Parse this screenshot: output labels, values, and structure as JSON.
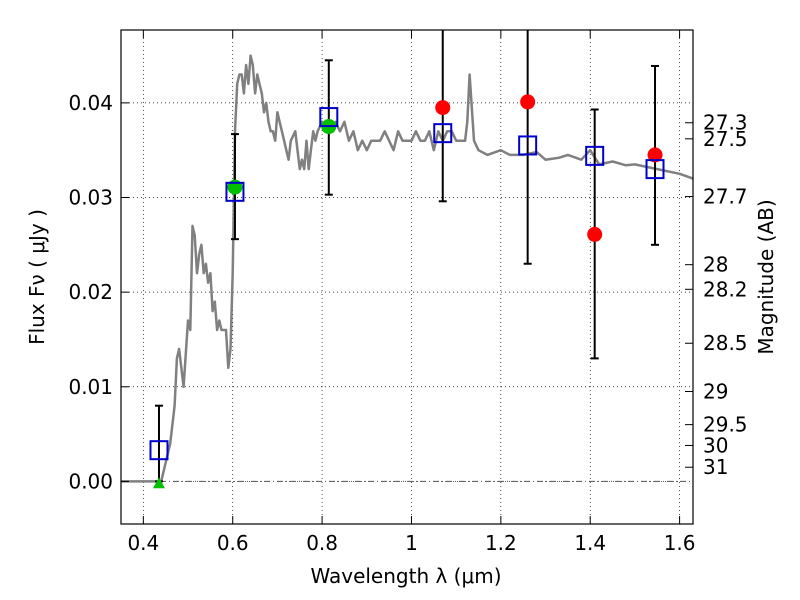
{
  "chart_data": {
    "type": "scatter",
    "xlabel": "Wavelength  λ (μm)",
    "ylabel": "Flux  Fν  ( μJy )",
    "y2label": "Magnitude (AB)",
    "xlim": [
      0.35,
      1.63
    ],
    "ylim": [
      -0.0045,
      0.0477
    ],
    "x_ticks": [
      0.4,
      0.6,
      0.8,
      1.0,
      1.2,
      1.4,
      1.6
    ],
    "x_tick_labels": [
      "0.4",
      "0.6",
      "0.8",
      "1",
      "1.2",
      "1.4",
      "1.6"
    ],
    "y_ticks": [
      0.0,
      0.01,
      0.02,
      0.03,
      0.04
    ],
    "y_tick_labels": [
      "0.00",
      "0.01",
      "0.02",
      "0.03",
      "0.04"
    ],
    "y2_ticks": [
      {
        "flux": 0.0379,
        "label": "27.3"
      },
      {
        "flux": 0.0362,
        "label": "27.5"
      },
      {
        "flux": 0.0301,
        "label": "27.7"
      },
      {
        "flux": 0.0229,
        "label": "28"
      },
      {
        "flux": 0.0203,
        "label": "28.2"
      },
      {
        "flux": 0.0146,
        "label": "28.5"
      },
      {
        "flux": 0.0095,
        "label": "29"
      },
      {
        "flux": 0.006,
        "label": "29.5"
      },
      {
        "flux": 0.0038,
        "label": "30"
      },
      {
        "flux": 0.0015,
        "label": "31"
      }
    ],
    "grid": true,
    "colors": {
      "model": "#808080",
      "green": "#00c000",
      "red": "#ff0000",
      "blue": "#0000cc",
      "errorbar": "#000000",
      "zero_line": "#555555"
    },
    "series": [
      {
        "kind": "model_spectrum",
        "x": [
          0.35,
          0.42,
          0.44,
          0.45,
          0.46,
          0.47,
          0.475,
          0.48,
          0.49,
          0.5,
          0.505,
          0.51,
          0.515,
          0.52,
          0.525,
          0.53,
          0.535,
          0.54,
          0.545,
          0.55,
          0.555,
          0.56,
          0.565,
          0.57,
          0.575,
          0.58,
          0.585,
          0.59,
          0.595,
          0.6,
          0.605,
          0.61,
          0.615,
          0.62,
          0.625,
          0.63,
          0.635,
          0.64,
          0.645,
          0.65,
          0.655,
          0.66,
          0.665,
          0.67,
          0.675,
          0.68,
          0.685,
          0.69,
          0.695,
          0.7,
          0.705,
          0.71,
          0.715,
          0.72,
          0.725,
          0.73,
          0.74,
          0.745,
          0.75,
          0.755,
          0.76,
          0.765,
          0.77,
          0.775,
          0.78,
          0.785,
          0.79,
          0.8,
          0.81,
          0.82,
          0.83,
          0.84,
          0.85,
          0.86,
          0.87,
          0.88,
          0.89,
          0.9,
          0.91,
          0.92,
          0.93,
          0.94,
          0.95,
          0.96,
          0.97,
          0.98,
          0.99,
          1.0,
          1.01,
          1.02,
          1.03,
          1.04,
          1.05,
          1.06,
          1.07,
          1.08,
          1.09,
          1.1,
          1.11,
          1.12,
          1.125,
          1.13,
          1.14,
          1.15,
          1.17,
          1.2,
          1.22,
          1.25,
          1.28,
          1.3,
          1.33,
          1.35,
          1.38,
          1.4,
          1.42,
          1.45,
          1.48,
          1.5,
          1.55,
          1.6,
          1.63
        ],
        "y": [
          0.0,
          0.0,
          0.0,
          0.002,
          0.004,
          0.008,
          0.013,
          0.014,
          0.01,
          0.017,
          0.016,
          0.027,
          0.026,
          0.022,
          0.024,
          0.025,
          0.022,
          0.023,
          0.021,
          0.022,
          0.018,
          0.019,
          0.016,
          0.017,
          0.016,
          0.016,
          0.016,
          0.012,
          0.014,
          0.022,
          0.037,
          0.042,
          0.043,
          0.043,
          0.041,
          0.044,
          0.042,
          0.045,
          0.044,
          0.041,
          0.043,
          0.042,
          0.041,
          0.039,
          0.04,
          0.038,
          0.037,
          0.037,
          0.036,
          0.039,
          0.038,
          0.037,
          0.036,
          0.035,
          0.034,
          0.036,
          0.037,
          0.035,
          0.033,
          0.034,
          0.033,
          0.036,
          0.033,
          0.035,
          0.037,
          0.036,
          0.037,
          0.038,
          0.037,
          0.037,
          0.038,
          0.037,
          0.038,
          0.036,
          0.037,
          0.035,
          0.036,
          0.035,
          0.036,
          0.036,
          0.036,
          0.037,
          0.036,
          0.035,
          0.037,
          0.036,
          0.036,
          0.036,
          0.037,
          0.036,
          0.036,
          0.037,
          0.035,
          0.037,
          0.036,
          0.037,
          0.037,
          0.036,
          0.036,
          0.036,
          0.038,
          0.043,
          0.036,
          0.035,
          0.0345,
          0.035,
          0.0345,
          0.0345,
          0.0348,
          0.034,
          0.0342,
          0.0345,
          0.034,
          0.035,
          0.0335,
          0.0338,
          0.0334,
          0.0335,
          0.033,
          0.0325,
          0.032
        ]
      },
      {
        "kind": "blue_squares",
        "x": [
          0.435,
          0.605,
          0.815,
          1.07,
          1.26,
          1.41,
          1.545
        ],
        "y": [
          0.0033,
          0.0306,
          0.0385,
          0.0368,
          0.0355,
          0.0344,
          0.033
        ]
      },
      {
        "kind": "red_circles",
        "x": [
          1.07,
          1.26,
          1.41,
          1.545
        ],
        "y": [
          0.0395,
          0.0401,
          0.0261,
          0.0345
        ]
      },
      {
        "kind": "green_circles",
        "x": [
          0.605,
          0.815
        ],
        "y": [
          0.0311,
          0.0375
        ]
      },
      {
        "kind": "green_triangle",
        "x": [
          0.435
        ],
        "y": [
          -0.0002
        ]
      },
      {
        "kind": "error_bars",
        "x": [
          0.435,
          0.605,
          0.815,
          1.07,
          1.26,
          1.41,
          1.545
        ],
        "low": [
          0.0,
          0.0256,
          0.0303,
          0.0296,
          0.023,
          0.013,
          0.025
        ],
        "high": [
          0.008,
          0.0367,
          0.0445,
          0.0477,
          0.0477,
          0.0393,
          0.0439
        ]
      }
    ]
  }
}
